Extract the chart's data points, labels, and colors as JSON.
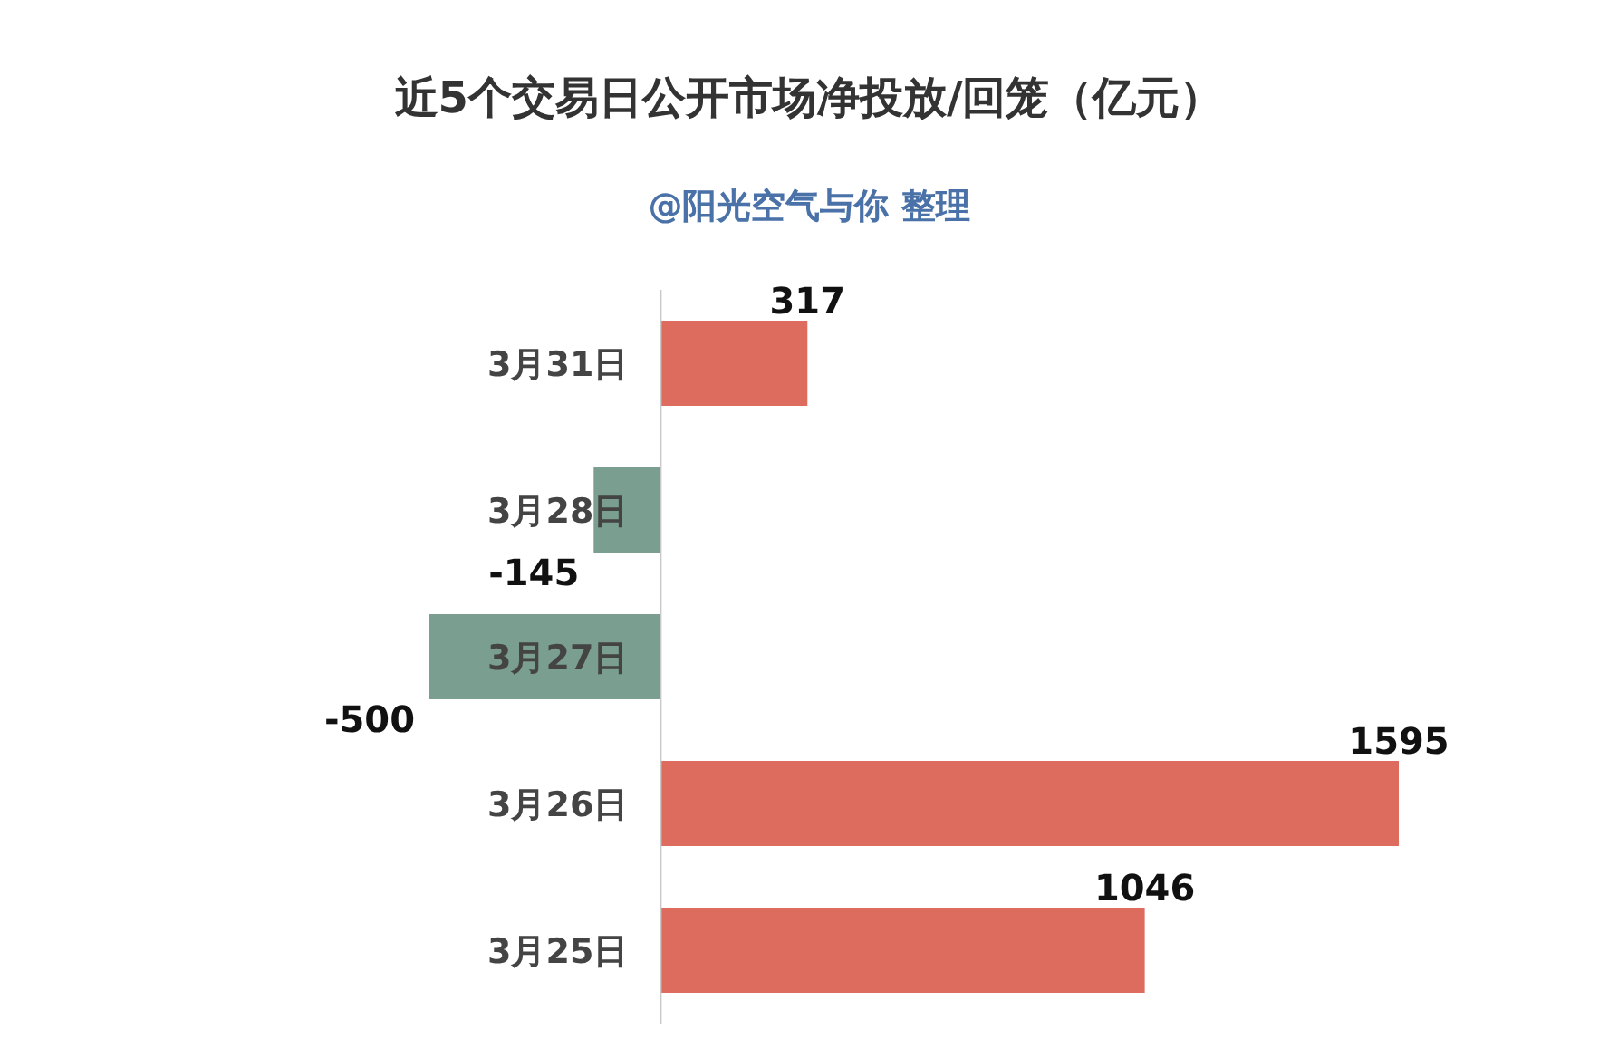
{
  "chart_data": {
    "type": "bar",
    "orientation": "horizontal",
    "title": "近5个交易日公开市场净投放/回笼（亿元）",
    "subtitle": "@阳光空气与你 整理",
    "categories": [
      "3月31日",
      "3月28日",
      "3月27日",
      "3月26日",
      "3月25日"
    ],
    "values": [
      317,
      -145,
      -500,
      1595,
      1046
    ],
    "colors": [
      "#dd6b5e",
      "#7a9e8f",
      "#7a9e8f",
      "#dd6b5e",
      "#dd6b5e"
    ],
    "data_labels": true
  }
}
